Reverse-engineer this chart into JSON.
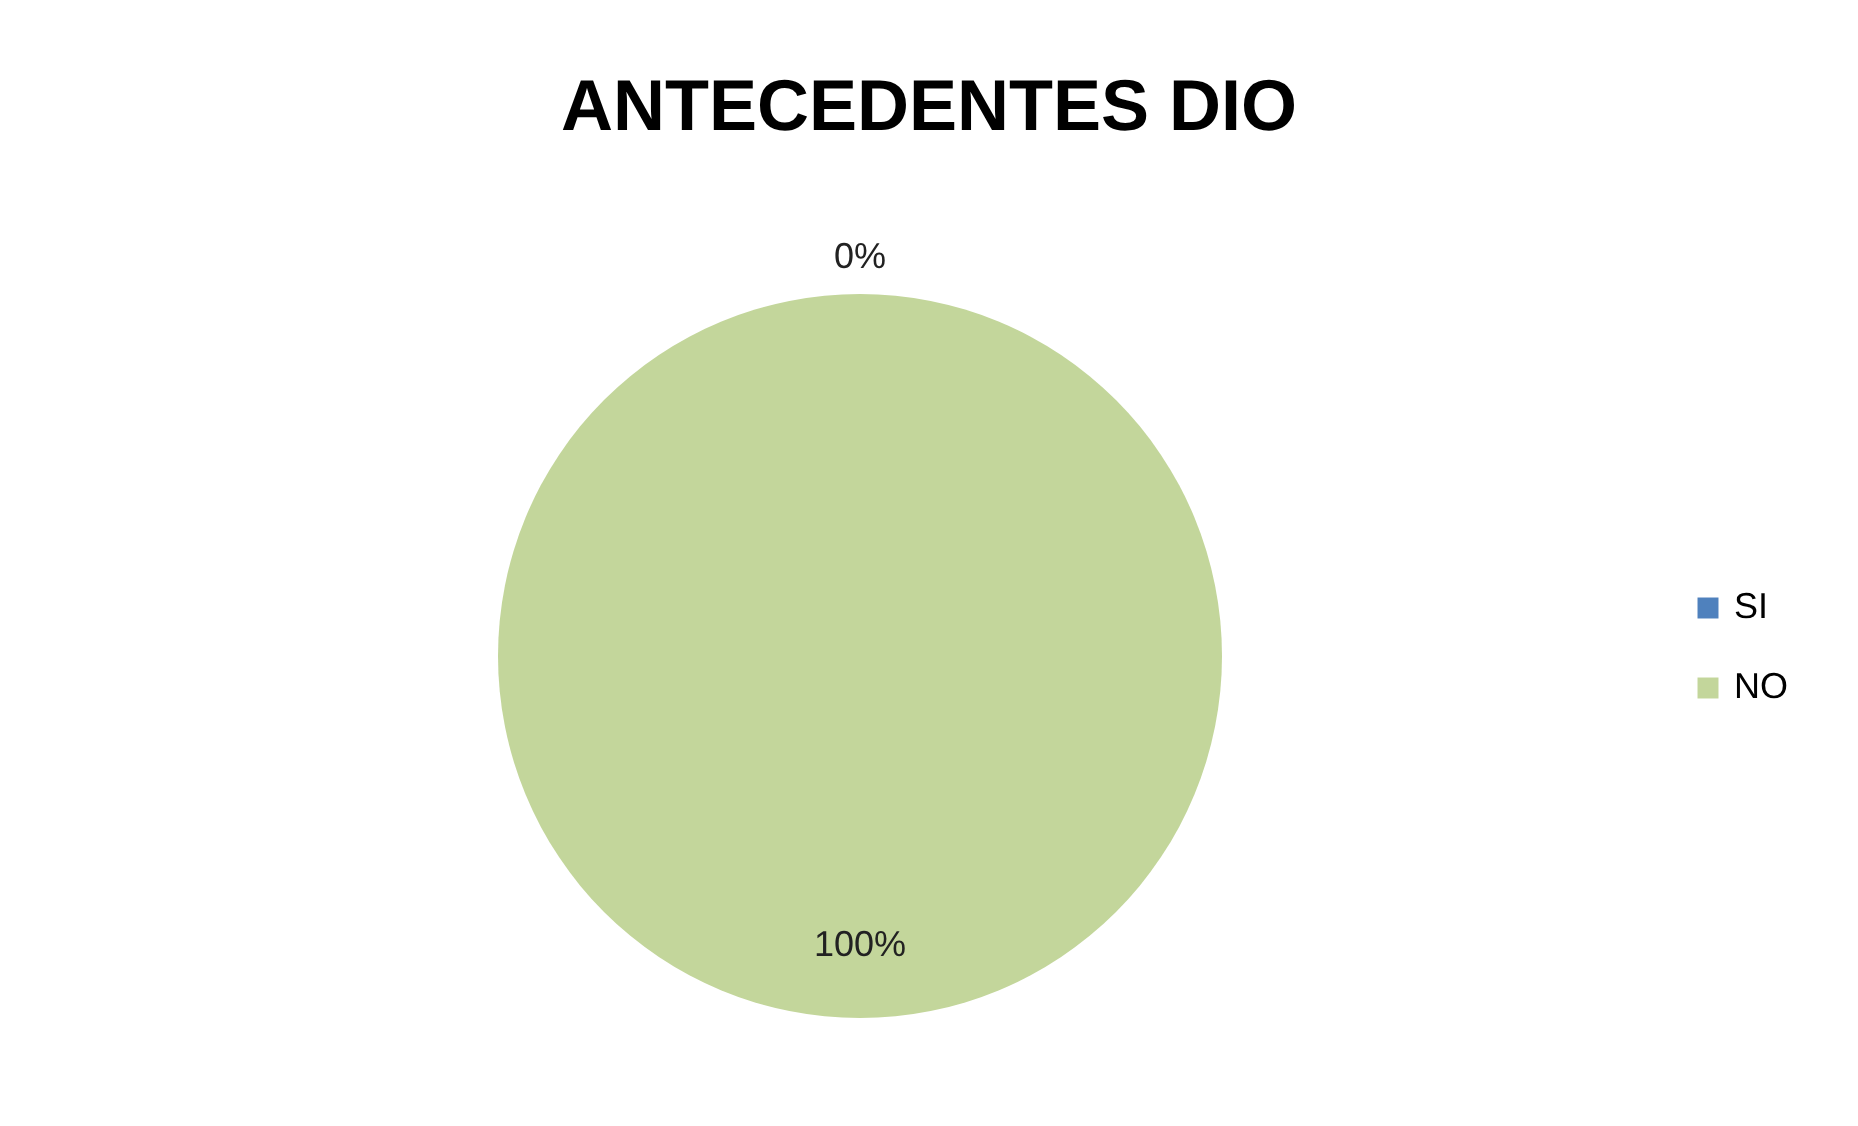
{
  "chart_data": {
    "type": "pie",
    "title": "ANTECEDENTES DIO",
    "categories": [
      "SI",
      "NO"
    ],
    "values": [
      0,
      100
    ],
    "colors": [
      "#4f81bd",
      "#c3d69b"
    ],
    "value_labels": [
      "0%",
      "100%"
    ],
    "legend": "right"
  }
}
